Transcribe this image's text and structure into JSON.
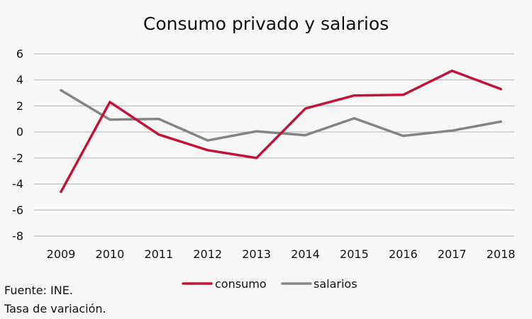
{
  "chart_data": {
    "type": "line",
    "title": "Consumo privado y salarios",
    "categories": [
      "2009",
      "2010",
      "2011",
      "2012",
      "2013",
      "2014",
      "2015",
      "2016",
      "2017",
      "2018"
    ],
    "yticks": [
      -8,
      -6,
      -4,
      -2,
      0,
      2,
      4,
      6
    ],
    "ylim": [
      -8,
      6
    ],
    "grid": true,
    "legend_position": "bottom",
    "series": [
      {
        "name": "consumo",
        "color": "#c0143c",
        "values": [
          -4.6,
          2.3,
          -0.2,
          -1.4,
          -2.0,
          1.8,
          2.8,
          2.85,
          4.7,
          3.3
        ]
      },
      {
        "name": "salarios",
        "color": "#858585",
        "values": [
          3.2,
          0.95,
          1.0,
          -0.65,
          0.05,
          -0.25,
          1.05,
          -0.3,
          0.1,
          0.8
        ]
      }
    ]
  },
  "notes": {
    "source": "Fuente: INE.",
    "measure": "Tasa de variación."
  }
}
